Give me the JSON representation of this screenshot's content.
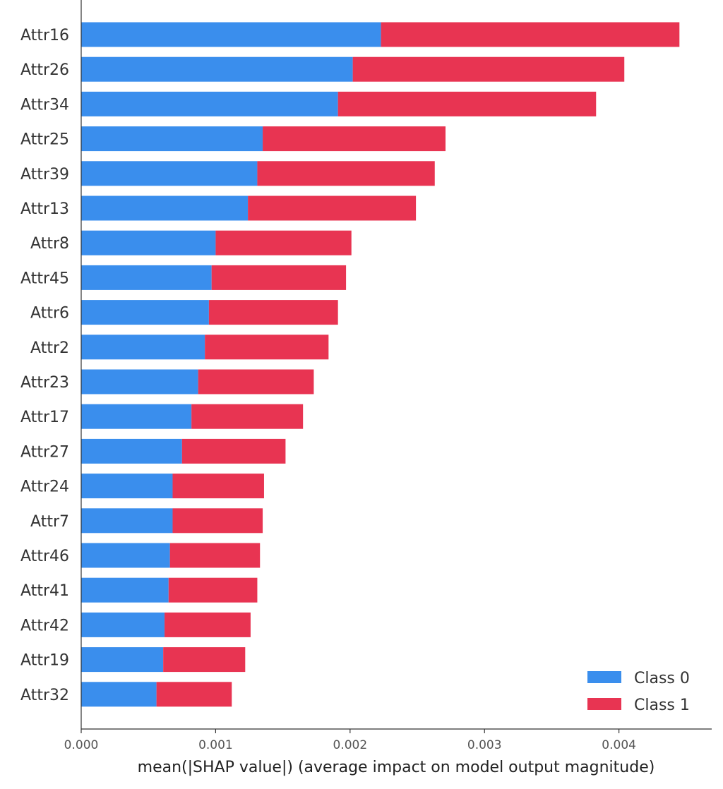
{
  "chart_data": {
    "type": "bar",
    "orientation": "horizontal",
    "stacked": true,
    "categories": [
      "Attr16",
      "Attr26",
      "Attr34",
      "Attr25",
      "Attr39",
      "Attr13",
      "Attr8",
      "Attr45",
      "Attr6",
      "Attr2",
      "Attr23",
      "Attr17",
      "Attr27",
      "Attr24",
      "Attr7",
      "Attr46",
      "Attr41",
      "Attr42",
      "Attr19",
      "Attr32"
    ],
    "series": [
      {
        "name": "Class 0",
        "color": "#3a8eed",
        "values": [
          0.00223,
          0.00202,
          0.00191,
          0.00135,
          0.00131,
          0.00124,
          0.001,
          0.00097,
          0.00095,
          0.00092,
          0.00087,
          0.00082,
          0.00075,
          0.00068,
          0.00068,
          0.00066,
          0.00065,
          0.00062,
          0.00061,
          0.00056
        ]
      },
      {
        "name": "Class 1",
        "color": "#e83452",
        "values": [
          0.00222,
          0.00202,
          0.00192,
          0.00136,
          0.00132,
          0.00125,
          0.00101,
          0.001,
          0.00096,
          0.00092,
          0.00086,
          0.00083,
          0.00077,
          0.00068,
          0.00067,
          0.00067,
          0.00066,
          0.00064,
          0.00061,
          0.00056
        ]
      }
    ],
    "xlabel": "mean(|SHAP value|) (average impact on model output magnitude)",
    "xticks": [
      "0.000",
      "0.001",
      "0.002",
      "0.003",
      "0.004"
    ],
    "xtick_values": [
      0,
      0.001,
      0.002,
      0.003,
      0.004
    ],
    "xlim": [
      0,
      0.00469
    ],
    "grid": false,
    "legend_position": "lower-right"
  }
}
